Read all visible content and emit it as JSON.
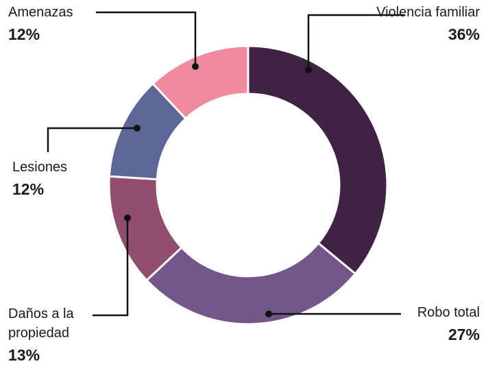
{
  "chart_data": {
    "type": "donut",
    "categories": [
      "Violencia familiar",
      "Robo total",
      "Daños a la propiedad",
      "Lesiones",
      "Amenazas"
    ],
    "values": [
      36,
      27,
      13,
      12,
      12
    ],
    "value_labels": [
      "36%",
      "27%",
      "13%",
      "12%",
      "12%"
    ],
    "colors": [
      "#3e2342",
      "#73568a",
      "#904f6c",
      "#5c6697",
      "#f08b9d"
    ]
  }
}
